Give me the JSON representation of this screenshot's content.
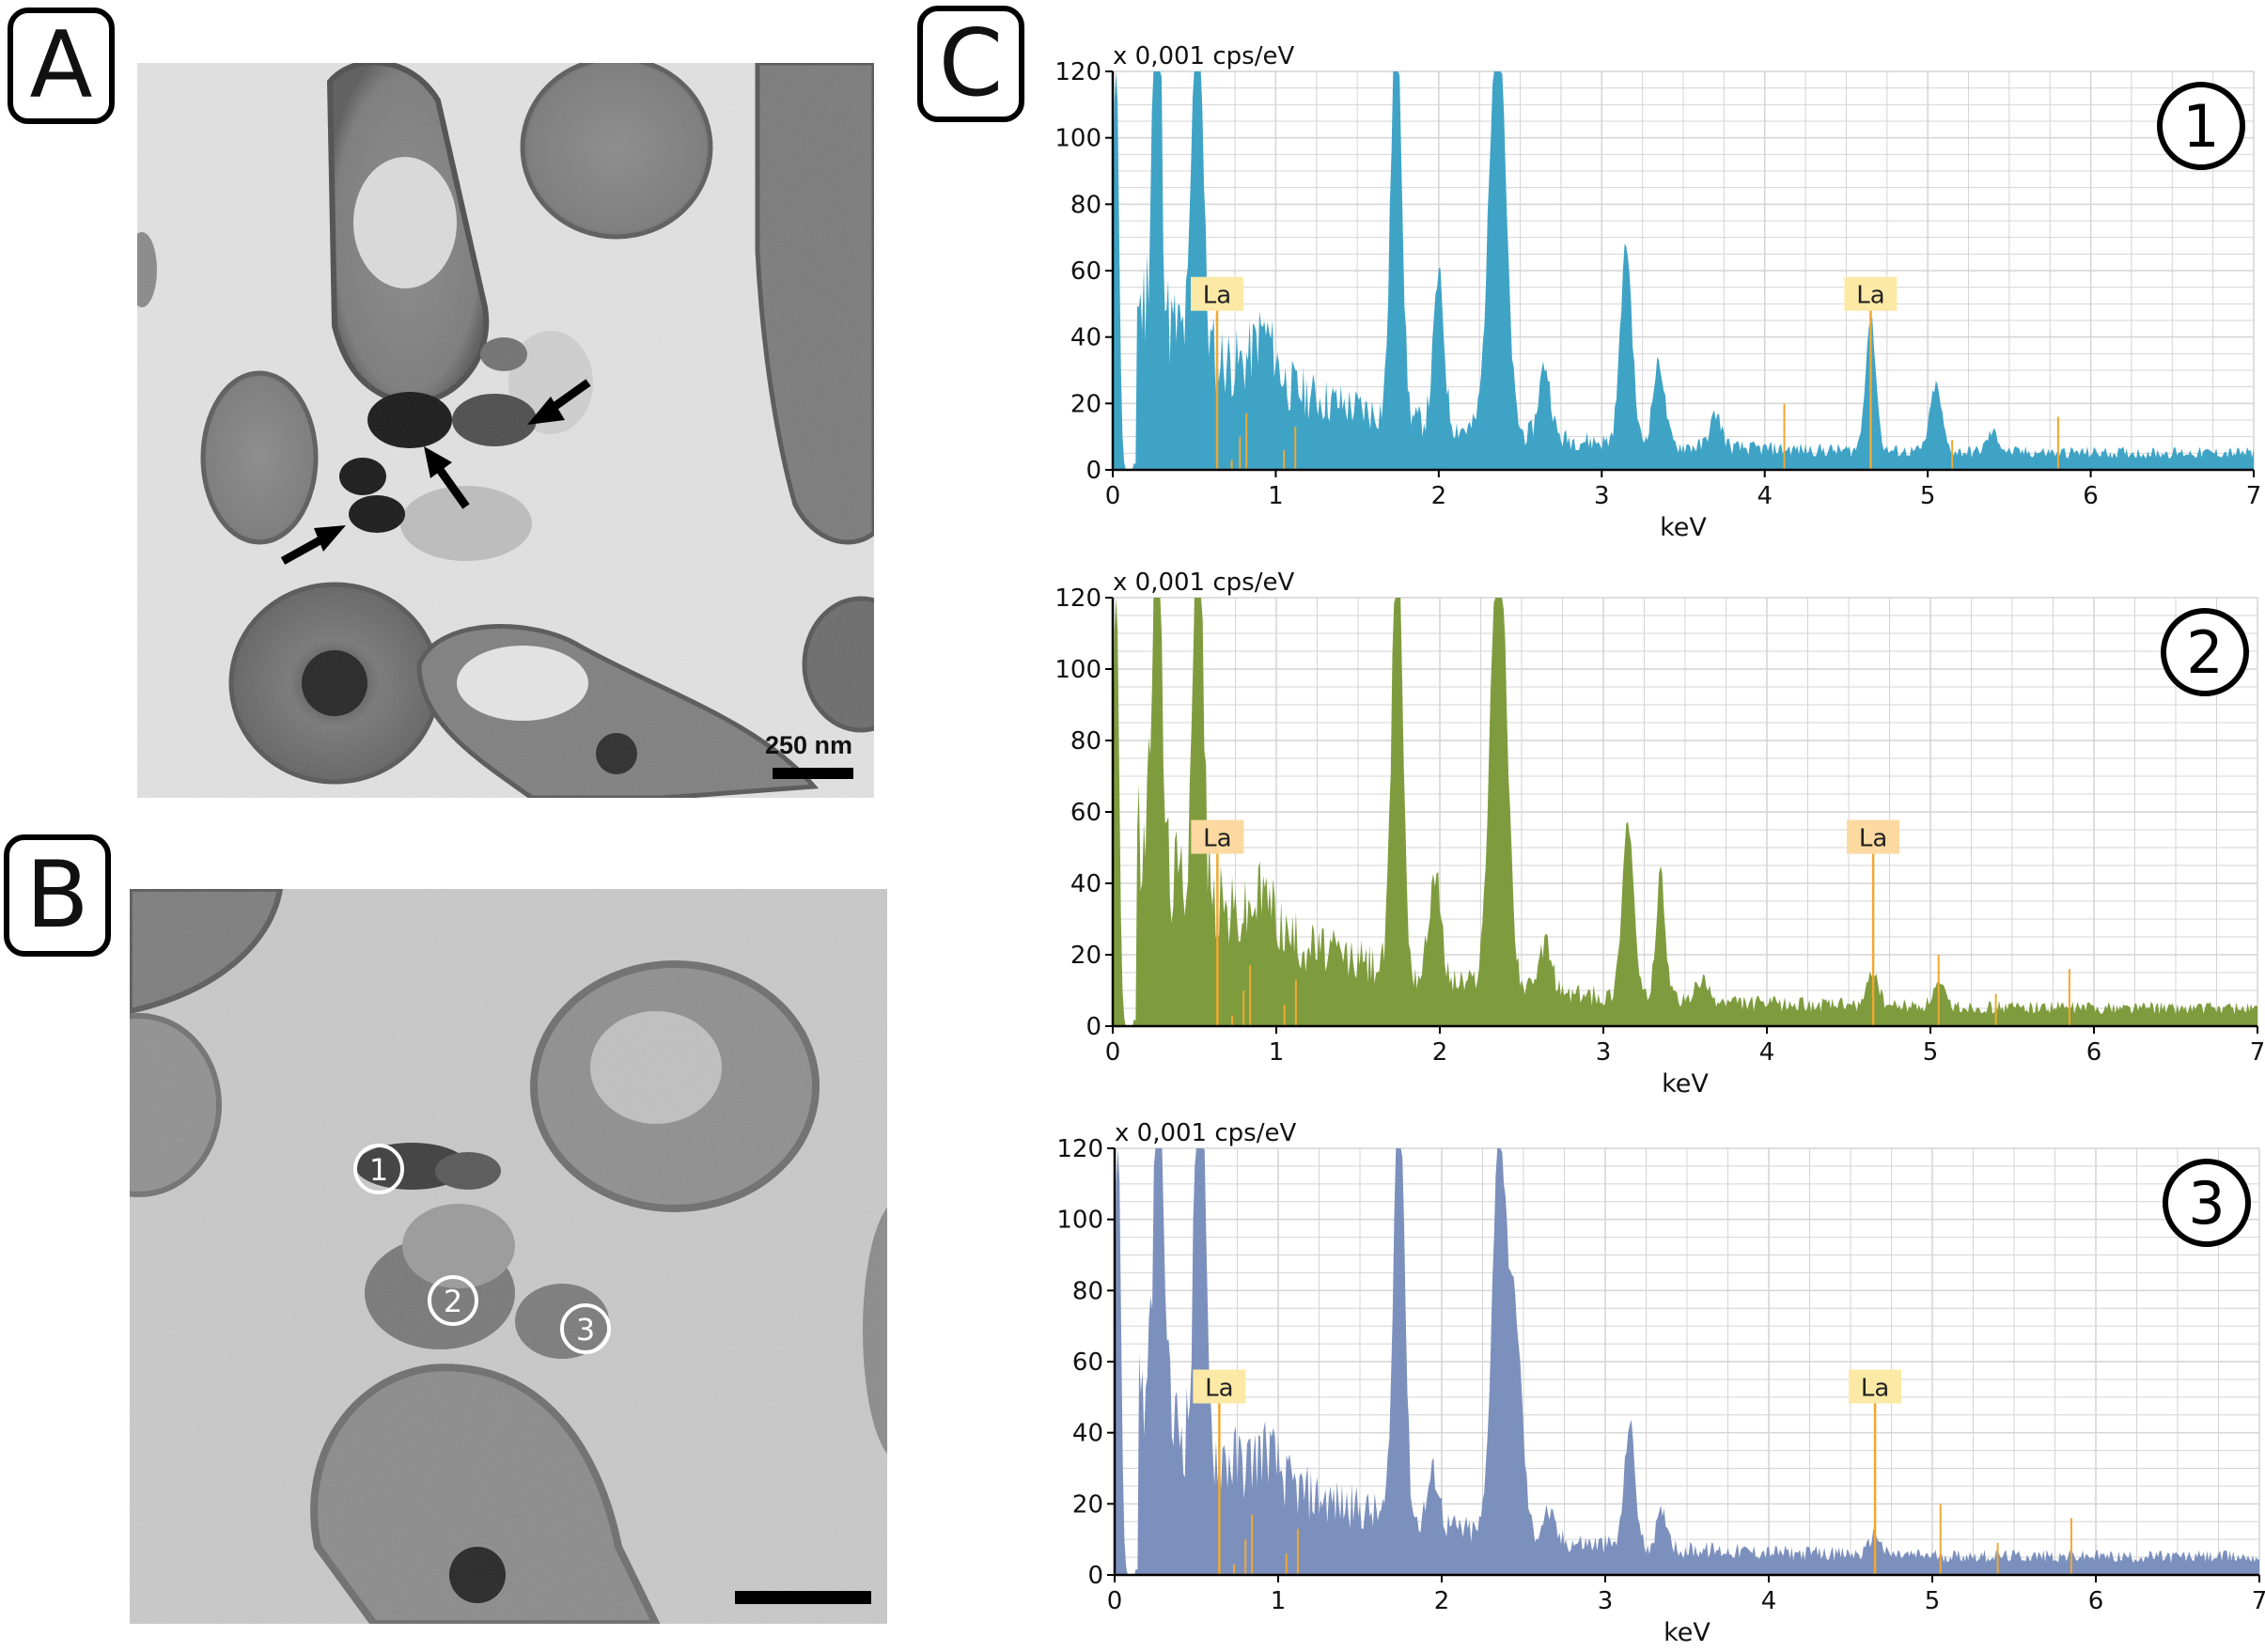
{
  "figure": {
    "panel_letters": [
      "A",
      "B",
      "C"
    ],
    "panel_a": {
      "scale_text": "250 nm",
      "arrow_icon": "black-arrow"
    },
    "panel_b": {
      "site_markers": [
        "1",
        "2",
        "3"
      ]
    }
  },
  "colors": {
    "spectrum_1": "#3fa3c6",
    "spectrum_2": "#7e9c3e",
    "spectrum_3": "#7c90bd",
    "marker_line": "#f0a830",
    "marker_label_bg_1": "#fde9a6",
    "marker_label_bg_2": "#fbd9a0",
    "grid": "#d4d4d4"
  },
  "chart_data": [
    {
      "type": "area",
      "series_marker": "1",
      "unit_label": "x 0,001 cps/eV",
      "xlabel": "keV",
      "ylabel": "",
      "xlim": [
        0,
        7
      ],
      "ylim": [
        0,
        120
      ],
      "xticks": [
        "0",
        "1",
        "2",
        "3",
        "4",
        "5",
        "6",
        "7"
      ],
      "yticks": [
        "0",
        "20",
        "40",
        "60",
        "80",
        "100",
        "120"
      ],
      "grid": true,
      "peak_markers": [
        {
          "label": "La",
          "x": 0.64,
          "label_y": 53
        },
        {
          "label": "La",
          "x": 4.65,
          "label_y": 53
        }
      ],
      "peaks": [
        {
          "x": 0.02,
          "y": 130,
          "w": 0.025
        },
        {
          "x": 0.27,
          "y": 130,
          "w": 0.035
        },
        {
          "x": 0.52,
          "y": 130,
          "w": 0.04
        },
        {
          "x": 0.93,
          "y": 14,
          "w": 0.09
        },
        {
          "x": 1.74,
          "y": 130,
          "w": 0.045
        },
        {
          "x": 2.0,
          "y": 45,
          "w": 0.045
        },
        {
          "x": 2.36,
          "y": 130,
          "w": 0.07
        },
        {
          "x": 2.65,
          "y": 22,
          "w": 0.05
        },
        {
          "x": 3.15,
          "y": 60,
          "w": 0.05
        },
        {
          "x": 3.35,
          "y": 25,
          "w": 0.05
        },
        {
          "x": 3.7,
          "y": 10,
          "w": 0.05
        },
        {
          "x": 4.65,
          "y": 40,
          "w": 0.045
        },
        {
          "x": 5.05,
          "y": 20,
          "w": 0.05
        },
        {
          "x": 5.4,
          "y": 6,
          "w": 0.05
        }
      ],
      "thin_lines": [
        0.73,
        0.78,
        0.82,
        1.05,
        1.12,
        4.12,
        5.15,
        5.8
      ]
    },
    {
      "type": "area",
      "series_marker": "2",
      "unit_label": "x 0,001 cps/eV",
      "xlabel": "keV",
      "ylabel": "",
      "xlim": [
        0,
        7
      ],
      "ylim": [
        0,
        120
      ],
      "xticks": [
        "0",
        "1",
        "2",
        "3",
        "4",
        "5",
        "6",
        "7"
      ],
      "yticks": [
        "0",
        "20",
        "40",
        "60",
        "80",
        "100",
        "120"
      ],
      "grid": true,
      "peak_markers": [
        {
          "label": "La",
          "x": 0.64,
          "label_y": 53
        },
        {
          "label": "La",
          "x": 4.65,
          "label_y": 53
        }
      ],
      "peaks": [
        {
          "x": 0.02,
          "y": 130,
          "w": 0.025
        },
        {
          "x": 0.27,
          "y": 130,
          "w": 0.035
        },
        {
          "x": 0.52,
          "y": 130,
          "w": 0.04
        },
        {
          "x": 0.93,
          "y": 10,
          "w": 0.09
        },
        {
          "x": 1.74,
          "y": 130,
          "w": 0.045
        },
        {
          "x": 1.97,
          "y": 30,
          "w": 0.05
        },
        {
          "x": 2.36,
          "y": 130,
          "w": 0.07
        },
        {
          "x": 2.65,
          "y": 14,
          "w": 0.05
        },
        {
          "x": 3.15,
          "y": 50,
          "w": 0.05
        },
        {
          "x": 3.35,
          "y": 35,
          "w": 0.04
        },
        {
          "x": 3.6,
          "y": 6,
          "w": 0.05
        },
        {
          "x": 4.65,
          "y": 10,
          "w": 0.045
        },
        {
          "x": 5.05,
          "y": 6,
          "w": 0.05
        }
      ],
      "thin_lines": [
        0.73,
        0.8,
        0.84,
        1.05,
        1.12,
        5.05,
        5.4,
        5.85
      ]
    },
    {
      "type": "area",
      "series_marker": "3",
      "unit_label": "x 0,001 cps/eV",
      "xlabel": "keV",
      "ylabel": "",
      "xlim": [
        0,
        7
      ],
      "ylim": [
        0,
        120
      ],
      "xticks": [
        "0",
        "1",
        "2",
        "3",
        "4",
        "5",
        "6",
        "7"
      ],
      "yticks": [
        "0",
        "20",
        "40",
        "60",
        "80",
        "100",
        "120"
      ],
      "grid": true,
      "peak_markers": [
        {
          "label": "La",
          "x": 0.64,
          "label_y": 53
        },
        {
          "label": "La",
          "x": 4.65,
          "label_y": 53
        }
      ],
      "peaks": [
        {
          "x": 0.02,
          "y": 130,
          "w": 0.025
        },
        {
          "x": 0.27,
          "y": 130,
          "w": 0.035
        },
        {
          "x": 0.52,
          "y": 130,
          "w": 0.04
        },
        {
          "x": 0.93,
          "y": 8,
          "w": 0.09
        },
        {
          "x": 1.74,
          "y": 130,
          "w": 0.045
        },
        {
          "x": 1.95,
          "y": 15,
          "w": 0.05
        },
        {
          "x": 2.35,
          "y": 110,
          "w": 0.06
        },
        {
          "x": 2.45,
          "y": 60,
          "w": 0.06
        },
        {
          "x": 2.65,
          "y": 8,
          "w": 0.05
        },
        {
          "x": 3.15,
          "y": 35,
          "w": 0.045
        },
        {
          "x": 3.35,
          "y": 10,
          "w": 0.05
        },
        {
          "x": 4.65,
          "y": 6,
          "w": 0.045
        }
      ],
      "thin_lines": [
        0.73,
        0.8,
        0.84,
        1.05,
        1.12,
        5.05,
        5.4,
        5.85
      ]
    }
  ]
}
